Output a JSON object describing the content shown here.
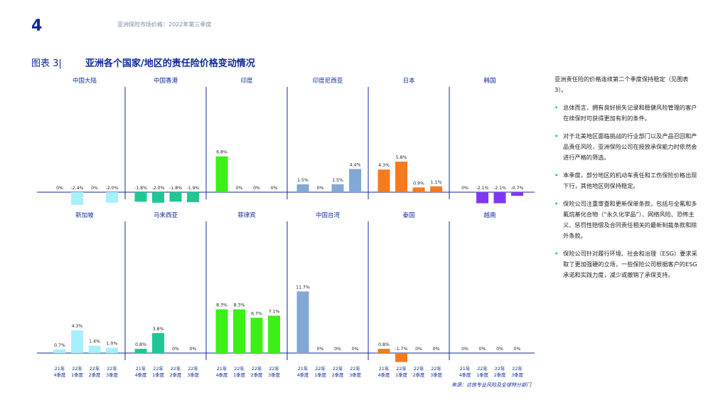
{
  "header": {
    "page_number": "4",
    "report_title": "亚洲保险市场价格：2022年第三季度",
    "figure_label": "图表 3|",
    "figure_title": "亚洲各个国家/地区的责任险价格变动情况"
  },
  "source": "来源：达信专业风险及全球特分部门",
  "sidebar": {
    "intro": "亚洲责任险的价格连续第二个季度保持稳定（见图表3）。",
    "bullets": [
      "总体而言，拥有良好损失记录和稳健风险管理的客户在续保时可获得更加有利的条件。",
      "对于北美地区面临挑战的行业部门以及产品召回和产品责任风险，亚洲保险公司在授放承保能力时依然会进行严格的筛选。",
      "本季度，部分地区的机动车责任和工伤保险价格出现下行，其他地区则保持稳定。",
      "保险公司注重审查和更新保单条款，包括与全氟和多氟烷基化合物（“永久化学品”）、网络风险、恐怖主义、惩罚性赔偿及合同责任相关的最新制裁条款和除外条款。",
      "保险公司针对履行环境、社会和治理（ESG）要求采取了更加强硬的立场，一些保险公司根据客户的ESG承诺和实践力度，减少或撤销了承保支持。"
    ]
  },
  "chart_data": {
    "type": "bar",
    "categories": [
      [
        "21年",
        "4季度"
      ],
      [
        "22年",
        "1季度"
      ],
      [
        "22年",
        "2季度"
      ],
      [
        "22年",
        "3季度"
      ]
    ],
    "panels": [
      {
        "name": "中国大陆",
        "color": "#a5f0fb",
        "values": [
          0,
          -2.4,
          0,
          -2.0
        ],
        "labels": [
          "0%",
          "-2.4%",
          "0%",
          "-2.0%"
        ]
      },
      {
        "name": "中国香港",
        "color": "#1fc795",
        "values": [
          -1.8,
          -2.0,
          -1.8,
          -1.9
        ],
        "labels": [
          "-1.8%",
          "-2.0%",
          "-1.8%",
          "-1.9%"
        ]
      },
      {
        "name": "印度",
        "color": "#3bef17",
        "values": [
          6.8,
          0,
          0,
          0
        ],
        "labels": [
          "6.8%",
          "0%",
          "0%",
          "0%"
        ]
      },
      {
        "name": "印度尼西亚",
        "color": "#82a8d4",
        "values": [
          1.5,
          0,
          1.5,
          4.4
        ],
        "labels": [
          "1.5%",
          "0%",
          "1.5%",
          "4.4%"
        ]
      },
      {
        "name": "日本",
        "color": "#f67a1e",
        "values": [
          4.3,
          5.8,
          0.9,
          1.1
        ],
        "labels": [
          "4.3%",
          "5.8%",
          "0.9%",
          "1.1%"
        ]
      },
      {
        "name": "韩国",
        "color": "#8037f0",
        "values": [
          0,
          -2.1,
          -2.1,
          -0.7
        ],
        "labels": [
          "0%",
          "-2.1%",
          "-2.1%",
          "-0.7%"
        ]
      },
      {
        "name": "新加坡",
        "color": "#a5f0fb",
        "values": [
          0.7,
          4.3,
          1.4,
          1.0
        ],
        "labels": [
          "0.7%",
          "4.3%",
          "1.4%",
          "1.0%"
        ]
      },
      {
        "name": "马来西亚",
        "color": "#1fc795",
        "values": [
          0.8,
          3.8,
          0,
          0
        ],
        "labels": [
          "0.8%",
          "3.8%",
          "0%",
          "0%"
        ]
      },
      {
        "name": "菲律宾",
        "color": "#3bef17",
        "values": [
          8.3,
          8.3,
          6.7,
          7.1
        ],
        "labels": [
          "8.3%",
          "8.3%",
          "6.7%",
          "7.1%"
        ]
      },
      {
        "name": "中国台湾",
        "color": "#82a8d4",
        "values": [
          11.7,
          0,
          0,
          0
        ],
        "labels": [
          "11.7%",
          "0%",
          "0%",
          "0%"
        ]
      },
      {
        "name": "泰国",
        "color": "#f67a1e",
        "values": [
          0.8,
          -1.7,
          0,
          0
        ],
        "labels": [
          "0.8%",
          "-1.7%",
          "0%",
          "0%"
        ]
      },
      {
        "name": "越南",
        "color": "#8037f0",
        "values": [
          0,
          0,
          0,
          0
        ],
        "labels": [
          "0%",
          "0%",
          "0%",
          "0%"
        ]
      }
    ],
    "xlabel": "",
    "ylabel": "",
    "grid": false,
    "axis_color": "#0e2a9c",
    "title_color": "#0e2a9c"
  }
}
